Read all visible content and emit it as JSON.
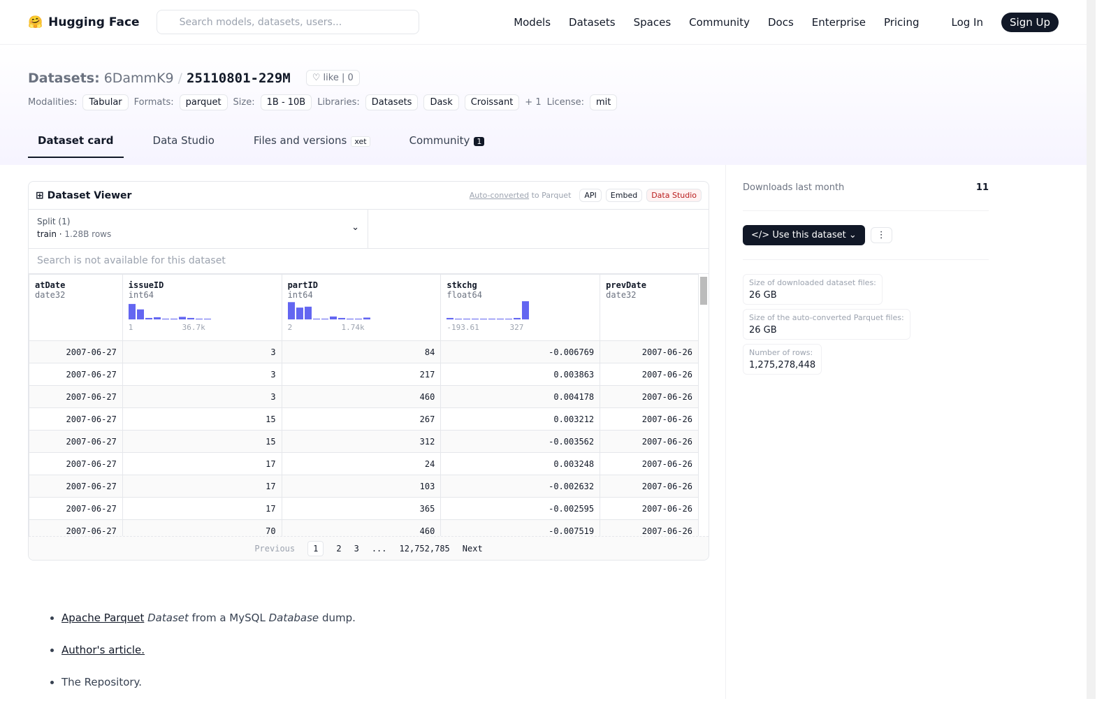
{
  "nav": {
    "brand": "Hugging Face",
    "search_placeholder": "Search models, datasets, users...",
    "links": [
      "Models",
      "Datasets",
      "Spaces",
      "Community",
      "Docs",
      "Enterprise",
      "Pricing"
    ],
    "login": "Log In",
    "signup": "Sign Up"
  },
  "header": {
    "kind": "Datasets:",
    "owner": "6DammK9",
    "name": "25110801-229M",
    "like": "like",
    "likes": 0,
    "tags": [
      {
        "label": "Modalities:",
        "items": [
          "Tabular"
        ]
      },
      {
        "label": "Formats:",
        "items": [
          "parquet"
        ]
      },
      {
        "label": "Size:",
        "items": [
          "1B - 10B"
        ]
      },
      {
        "label": "Libraries:",
        "items": [
          "Datasets",
          "Dask",
          "Croissant"
        ],
        "more": "+ 1"
      },
      {
        "label": "License:",
        "items": [
          "mit"
        ]
      }
    ]
  },
  "tabs": [
    {
      "label": "Dataset card"
    },
    {
      "label": "Data Studio"
    },
    {
      "label": "Files and versions",
      "badge": "xet"
    },
    {
      "label": "Community",
      "badge": "1"
    }
  ],
  "viewer": {
    "title": "Dataset Viewer",
    "auto": "Auto-converted",
    "auto_suffix": "to Parquet",
    "buttons": [
      "API",
      "Embed",
      "Data Studio"
    ],
    "split_label": "Split (1)",
    "split": "train",
    "rows_label": "1.28B rows",
    "search": "Search is not available for this dataset",
    "columns": [
      {
        "name": "atDate",
        "type": "date32"
      },
      {
        "name": "issueID",
        "type": "int64",
        "hist": [
          85,
          55,
          8,
          12,
          4,
          4,
          14,
          8,
          4,
          2
        ],
        "range": [
          "1",
          "36.7k"
        ]
      },
      {
        "name": "partID",
        "type": "int64",
        "hist": [
          95,
          65,
          70,
          4,
          4,
          16,
          8,
          4,
          4,
          10
        ],
        "range": [
          "2",
          "1.74k"
        ]
      },
      {
        "name": "stkchg",
        "type": "float64",
        "hist": [
          8,
          0,
          4,
          4,
          0,
          4,
          4,
          0,
          8,
          100
        ],
        "range": [
          "-193.61",
          "327"
        ]
      },
      {
        "name": "prevDate",
        "type": "date32"
      }
    ],
    "rows": [
      [
        "2007-06-27",
        3,
        84,
        -0.006769,
        "2007-06-26"
      ],
      [
        "2007-06-27",
        3,
        217,
        0.003863,
        "2007-06-26"
      ],
      [
        "2007-06-27",
        3,
        460,
        0.004178,
        "2007-06-26"
      ],
      [
        "2007-06-27",
        15,
        267,
        0.003212,
        "2007-06-26"
      ],
      [
        "2007-06-27",
        15,
        312,
        -0.003562,
        "2007-06-26"
      ],
      [
        "2007-06-27",
        17,
        24,
        0.003248,
        "2007-06-26"
      ],
      [
        "2007-06-27",
        17,
        103,
        -0.002632,
        "2007-06-26"
      ],
      [
        "2007-06-27",
        17,
        365,
        -0.002595,
        "2007-06-26"
      ],
      [
        "2007-06-27",
        70,
        460,
        -0.007519,
        "2007-06-26"
      ]
    ],
    "pagination": {
      "previous": "Previous",
      "pages": [
        "1",
        "2",
        "3",
        "...",
        "12,752,785"
      ],
      "next": "Next"
    }
  },
  "sidebar": {
    "downloads_label": "Downloads last month",
    "downloads": 11,
    "use_button": "Use this dataset",
    "sizes": [
      {
        "label": "Size of downloaded dataset files:",
        "value": "26 GB"
      },
      {
        "label": "Size of the auto-converted Parquet files:",
        "value": "26 GB"
      },
      {
        "label": "Number of rows:",
        "value": "1,275,278,448"
      }
    ]
  },
  "card": {
    "items": [
      {
        "link": "Apache Parquet",
        "em1": "Dataset",
        "text1": "from a MySQL",
        "em2": "Database",
        "text2": "dump."
      },
      {
        "link": "Author's article."
      },
      {
        "text": "The Repository."
      }
    ]
  }
}
